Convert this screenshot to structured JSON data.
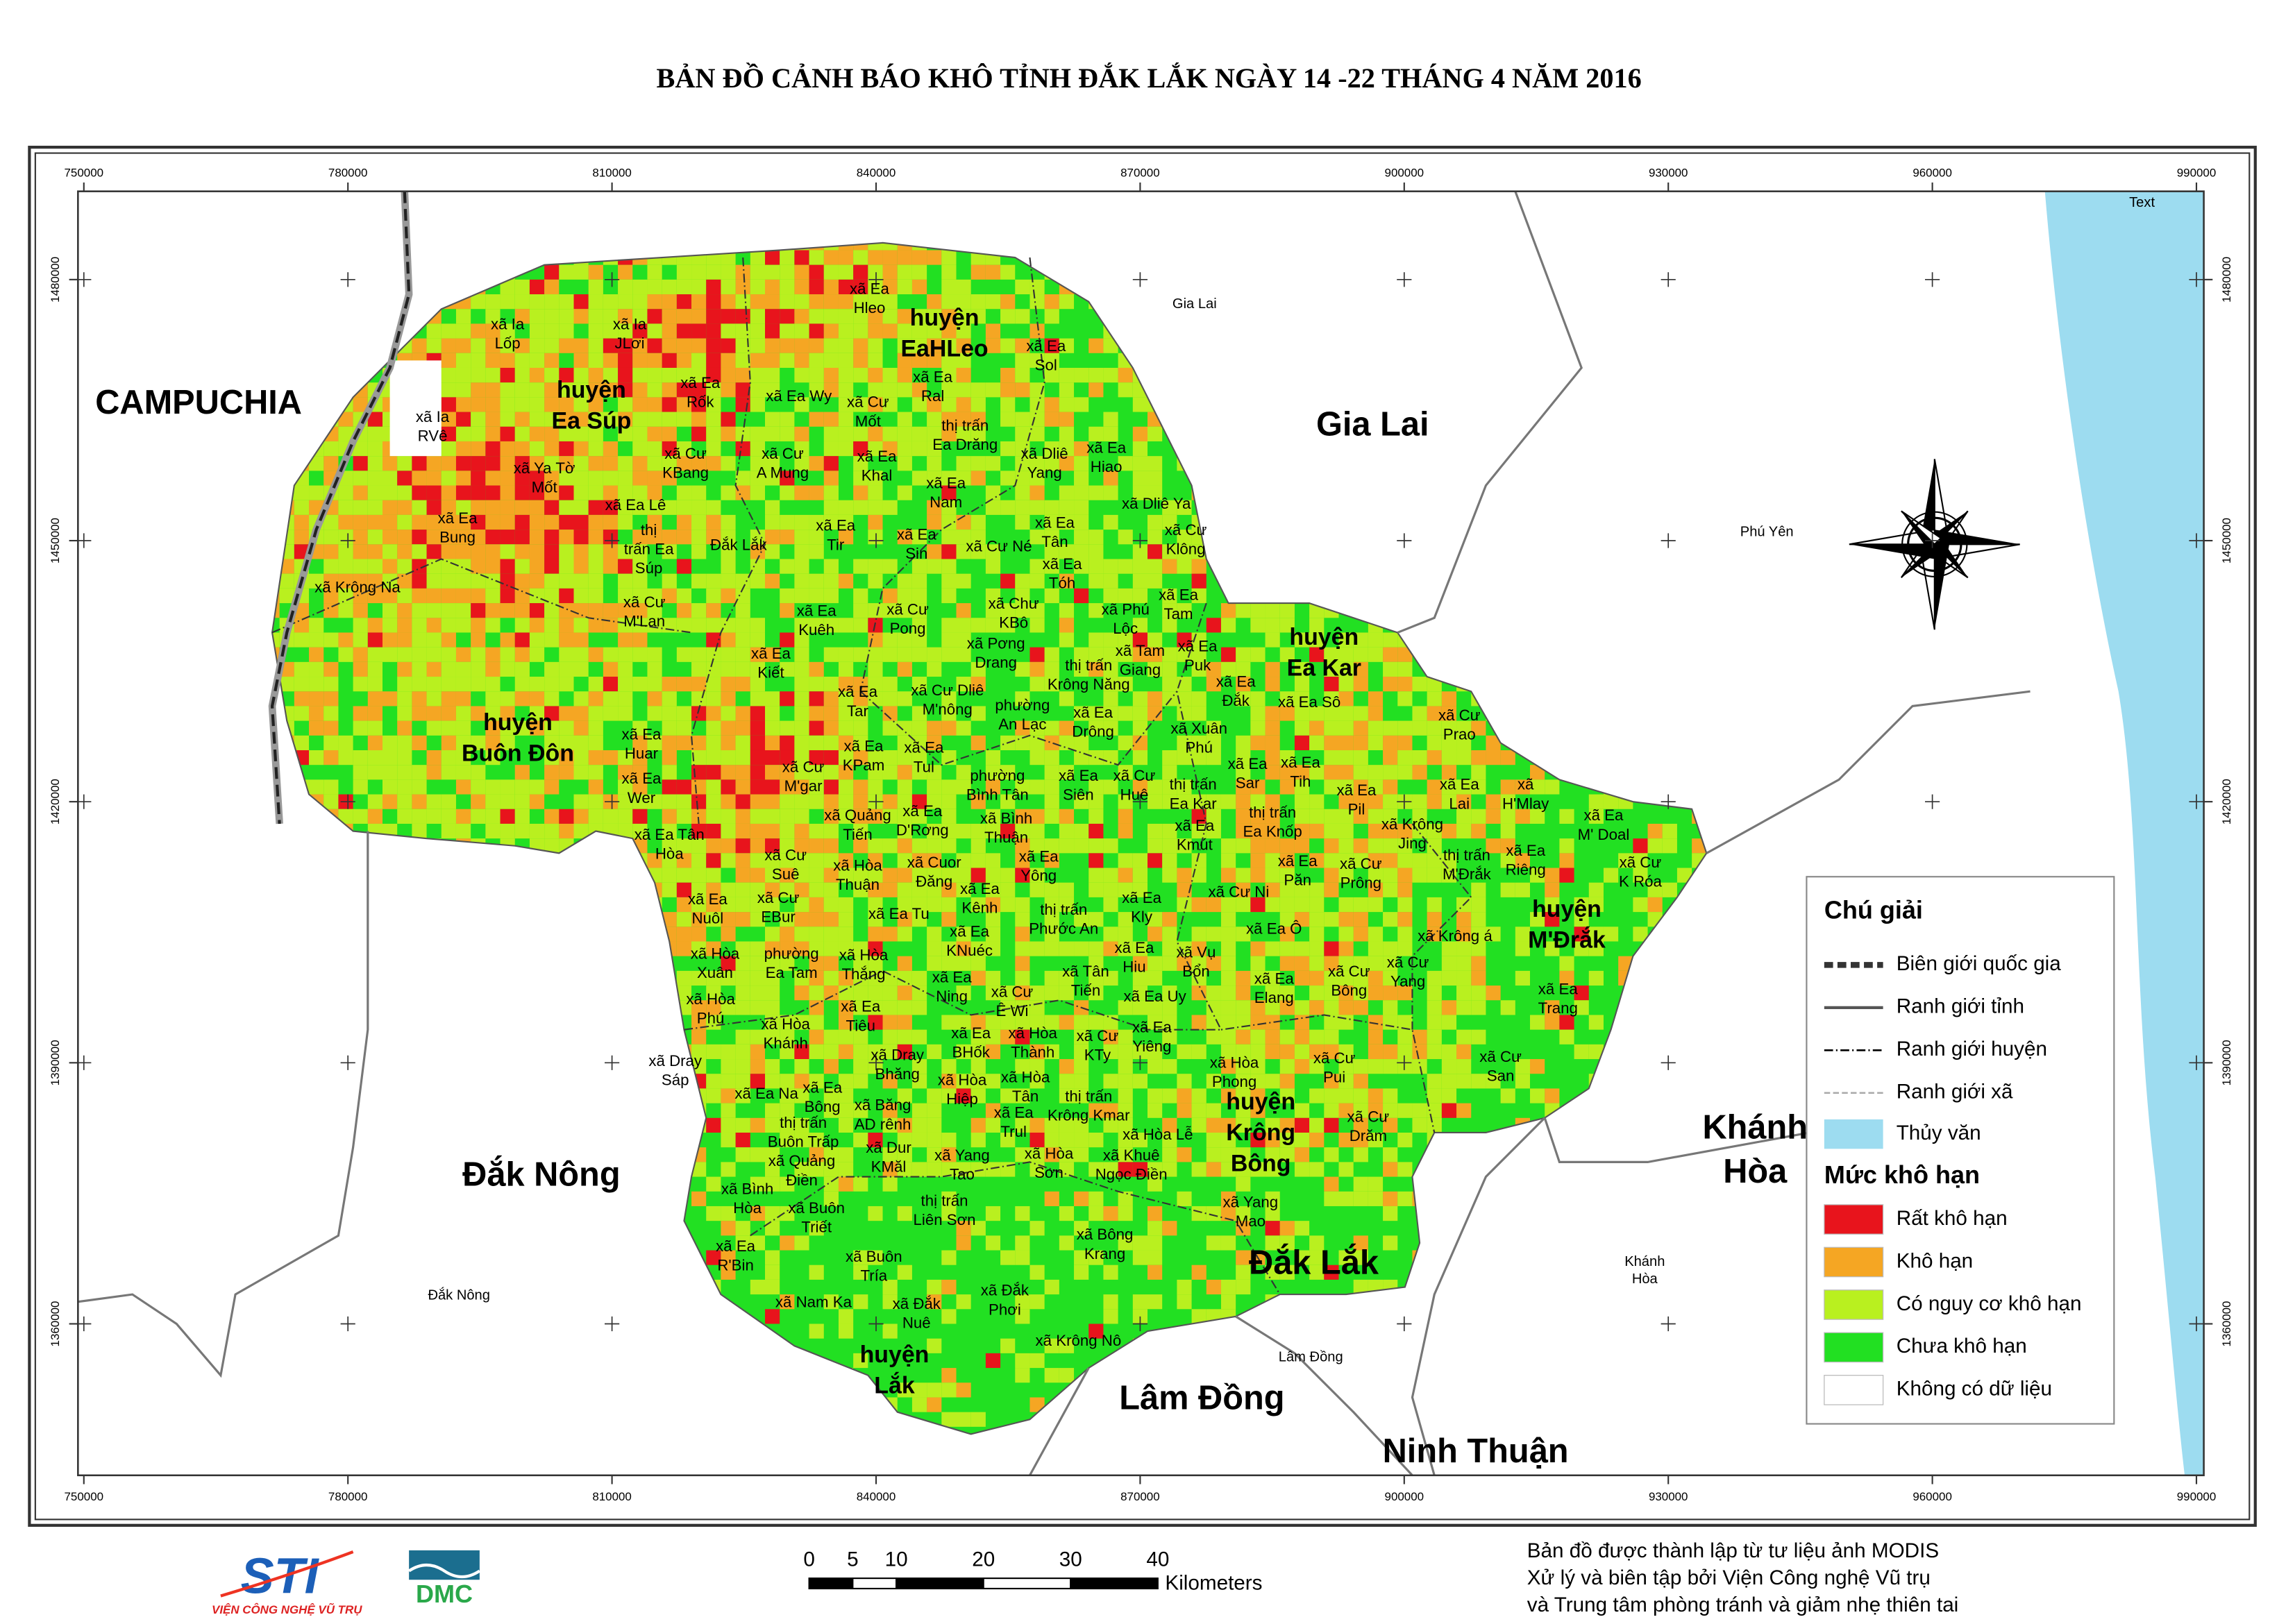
{
  "title": "BẢN ĐỒ CẢNH BÁO KHÔ TỈNH ĐẮK LẮK NGÀY 14 -22 THÁNG 4 NĂM 2016",
  "map": {
    "easting_ticks": [
      750000,
      780000,
      810000,
      840000,
      870000,
      900000,
      930000,
      960000,
      990000
    ],
    "northing_ticks": [
      1360000,
      1390000,
      1420000,
      1450000,
      1480000
    ],
    "corner_note": "Text",
    "region_labels": [
      [
        "CAMPUCHIA"
      ],
      [
        "Gia Lai"
      ],
      [
        "Đắk Nông"
      ],
      [
        "Khánh",
        "Hòa"
      ],
      [
        "Lâm Đồng"
      ],
      [
        "Ninh Thuận"
      ],
      [
        "Đắk Lắk"
      ]
    ],
    "small_region_labels": [
      [
        "Gia Lai"
      ],
      [
        "Phú Yên"
      ],
      [
        "Đắk Nông"
      ],
      [
        "Khánh",
        "Hòa"
      ],
      [
        "Lâm Đồng"
      ]
    ],
    "district_labels": [
      [
        "huyện",
        "Ea Súp"
      ],
      [
        "huyện",
        "EaHLeo"
      ],
      [
        "huyện",
        "Buôn Đôn"
      ],
      [
        "huyện",
        "Ea Kar"
      ],
      [
        "huyện",
        "M'Đrắk"
      ],
      [
        "huyện",
        "Krông",
        "Bông"
      ],
      [
        "huyện",
        "Lắk"
      ]
    ],
    "commune_labels": [
      [
        "xã Ia",
        "Lốp"
      ],
      [
        "xã Ia",
        "JLơi"
      ],
      [
        "xã Ea",
        "Hleo"
      ],
      [
        "xã Ea",
        "Sol"
      ],
      [
        "xã Ia",
        "RVê"
      ],
      [
        "xã Ea",
        "Rốk"
      ],
      [
        "xã Ea Wy"
      ],
      [
        "xã Cư",
        "Mốt"
      ],
      [
        "xã Ea",
        "Ral"
      ],
      [
        "thị trấn",
        "Ea Drăng"
      ],
      [
        "xã Ya Tờ",
        "Mốt"
      ],
      [
        "xã Cư",
        "KBang"
      ],
      [
        "xã Cư",
        "A Mung"
      ],
      [
        "xã Ea",
        "Khal"
      ],
      [
        "xã Dliê",
        "Yang"
      ],
      [
        "xã Ea",
        "Hiao"
      ],
      [
        "xã Ea Lê"
      ],
      [
        "xã Ea",
        "Bung"
      ],
      [
        "xã Ea",
        "Nam"
      ],
      [
        "xã Dliê Ya"
      ],
      [
        "thị",
        "trấn Ea",
        "Súp"
      ],
      [
        "Đắk Lắk"
      ],
      [
        "xã Ea",
        "Tir"
      ],
      [
        "xã Ea",
        "Sin"
      ],
      [
        "xã Ea",
        "Tân"
      ],
      [
        "xã Cư",
        "Klông"
      ],
      [
        "xã Cư Né"
      ],
      [
        "xã Krông Na"
      ],
      [
        "xã Ea",
        "Tóh"
      ],
      [
        "xã Ea",
        "Tam"
      ],
      [
        "xã Cư",
        "M'Lan"
      ],
      [
        "xã Ea",
        "Kuêh"
      ],
      [
        "xã Cư",
        "Pong"
      ],
      [
        "xã Chư",
        "KBô"
      ],
      [
        "xã Phú",
        "Lộc"
      ],
      [
        "xã Pơng",
        "Drang"
      ],
      [
        "xã Tam",
        "Giang"
      ],
      [
        "xã Ea",
        "Puk"
      ],
      [
        "xã Ea",
        "Kiết"
      ],
      [
        "thị trấn",
        "Krông Năng"
      ],
      [
        "xã Ea",
        "Đắk"
      ],
      [
        "xã Cư Dliê",
        "M'nông"
      ],
      [
        "xã Ea",
        "Tar"
      ],
      [
        "phường",
        "An Lạc"
      ],
      [
        "xã Ea",
        "Drông"
      ],
      [
        "xã Ea Sô"
      ],
      [
        "xã Xuân",
        "Phú"
      ],
      [
        "xã Ea",
        "Huar"
      ],
      [
        "xã Cư",
        "Prao"
      ],
      [
        "xã Ea",
        "KPam"
      ],
      [
        "xã Ea",
        "Tul"
      ],
      [
        "xã Cư",
        "M'gar"
      ],
      [
        "xã Ea",
        "Tih"
      ],
      [
        "xã Ea",
        "Sar"
      ],
      [
        "xã Ea",
        "Wer"
      ],
      [
        "phường",
        "Bình Tân"
      ],
      [
        "xã Ea",
        "Siên"
      ],
      [
        "xã Cư",
        "Huê"
      ],
      [
        "thị trấn",
        "Ea Kar"
      ],
      [
        "xã Ea",
        "Pil"
      ],
      [
        "xã Ea",
        "Lai"
      ],
      [
        "xã",
        "H'Mlay"
      ],
      [
        "thị trấn",
        "Ea Knốp"
      ],
      [
        "xã Ea",
        "M' Doal"
      ],
      [
        "xã Quảng",
        "Tiến"
      ],
      [
        "xã Ea",
        "D'Rơng"
      ],
      [
        "xã Bình",
        "Thuận"
      ],
      [
        "xã Ea Tân",
        "Hòa"
      ],
      [
        "xã Krông",
        "Jing"
      ],
      [
        "thị trấn",
        "M'Đrắk"
      ],
      [
        "xã Ea",
        "Riêng"
      ],
      [
        "xã Ea",
        "Kmút"
      ],
      [
        "xã Cư",
        "Suê"
      ],
      [
        "xã Hòa",
        "Thuận"
      ],
      [
        "xã Cuor",
        "Đăng"
      ],
      [
        "xã Ea",
        "Yông"
      ],
      [
        "xã Ea",
        "Păn"
      ],
      [
        "xã Cư",
        "Prông"
      ],
      [
        "xã Cư",
        "K Róa"
      ],
      [
        "xã Ea",
        "Nuôl"
      ],
      [
        "xã Cư",
        "EBur"
      ],
      [
        "xã Ea",
        "Kênh"
      ],
      [
        "xã Cư Ni"
      ],
      [
        "thị trấn",
        "Phước An"
      ],
      [
        "xã Ea Tu"
      ],
      [
        "xã Ea Ô"
      ],
      [
        "xã Krông á"
      ],
      [
        "xã Ea",
        "Kly"
      ],
      [
        "xã Ea",
        "Hiu"
      ],
      [
        "xã Hòa",
        "Xuân"
      ],
      [
        "phường",
        "Ea Tam"
      ],
      [
        "xã Hòa",
        "Thắng"
      ],
      [
        "xã Ea",
        "KNuéc"
      ],
      [
        "xã Vụ",
        "Bổn"
      ],
      [
        "xã Cư",
        "Bông"
      ],
      [
        "xã Cư",
        "Yang"
      ],
      [
        "xã Ea",
        "Trang"
      ],
      [
        "xã Ea",
        "Ning"
      ],
      [
        "xã Tân",
        "Tiến"
      ],
      [
        "xã Ea",
        "Elang"
      ],
      [
        "xã Hòa",
        "Phú"
      ],
      [
        "xã Ea",
        "Tiêu"
      ],
      [
        "xã Cư",
        "Ê Wi"
      ],
      [
        "xã Ea Uy"
      ],
      [
        "xã Hòa",
        "Khánh"
      ],
      [
        "xã Dray",
        "Sáp"
      ],
      [
        "xã Ea",
        "BHốk"
      ],
      [
        "xã Hòa",
        "Thành"
      ],
      [
        "xã Ea",
        "Yiêng"
      ],
      [
        "xã Dray",
        "Bhăng"
      ],
      [
        "xã Cư",
        "KTy"
      ],
      [
        "xã Hòa",
        "Phong"
      ],
      [
        "xã Cư",
        "Pui"
      ],
      [
        "xã Cư",
        "San"
      ],
      [
        "xã Hòa",
        "Hiệp"
      ],
      [
        "xã Hòa",
        "Tân"
      ],
      [
        "xã Ea Na"
      ],
      [
        "xã Ea",
        "Bông"
      ],
      [
        "xã Băng",
        "AD rênh"
      ],
      [
        "thị trấn",
        "Krông Kmar"
      ],
      [
        "xã Hòa Lễ"
      ],
      [
        "thị trấn",
        "Buôn Trấp"
      ],
      [
        "xã Dur",
        "KMăl"
      ],
      [
        "xã Ea",
        "Trul"
      ],
      [
        "xã Hòa",
        "Sơn"
      ],
      [
        "xã Khuê",
        "Ngọc Điền"
      ],
      [
        "xã Quảng",
        "Điền"
      ],
      [
        "xã Yang",
        "Tao"
      ],
      [
        "xã Cư",
        "Drăm"
      ],
      [
        "xã Bình",
        "Hòa"
      ],
      [
        "xã Buôn",
        "Triết"
      ],
      [
        "thị trấn",
        "Liên Sơn"
      ],
      [
        "xã Yang",
        "Mao"
      ],
      [
        "xã Ea",
        "R'Bin"
      ],
      [
        "xã Bông",
        "Krang"
      ],
      [
        "xã Buôn",
        "Tría"
      ],
      [
        "xã Đắk",
        "Phơi"
      ],
      [
        "xã Nam Ka"
      ],
      [
        "xã Đắk",
        "Nuê"
      ],
      [
        "xã Krông Nô"
      ]
    ]
  },
  "legend": {
    "title": "Chú giải",
    "boundaries": [
      "Biên giới quốc gia",
      "Ranh giới tỉnh",
      "Ranh giới huyện",
      "Ranh giới xã"
    ],
    "hydrology": {
      "label": "Thủy văn",
      "color": "#9ddcf0"
    },
    "drought_title": "Mức khô hạn",
    "classes": [
      {
        "label": "Rất khô hạn",
        "color": "#e8141c"
      },
      {
        "label": "Khô hạn",
        "color": "#f5a623"
      },
      {
        "label": "Có nguy cơ khô hạn",
        "color": "#b9f01f"
      },
      {
        "label": "Chưa khô hạn",
        "color": "#22e022"
      },
      {
        "label": "Không có dữ liệu",
        "color": "#ffffff"
      }
    ]
  },
  "scale_bar": {
    "ticks": [
      0,
      5,
      10,
      20,
      30,
      40
    ],
    "unit": "Kilometers"
  },
  "logos": {
    "sti": "STI",
    "sti_caption": "VIỆN CÔNG NGHỆ VŨ TRỤ",
    "dmc": "DMC"
  },
  "credit": [
    "Bản đồ được thành lập từ tư liệu ảnh MODIS",
    "Xử lý và biên tập bởi Viện Công nghệ Vũ trụ",
    "và Trung tâm phòng tránh và giảm nhẹ thiên tai"
  ]
}
